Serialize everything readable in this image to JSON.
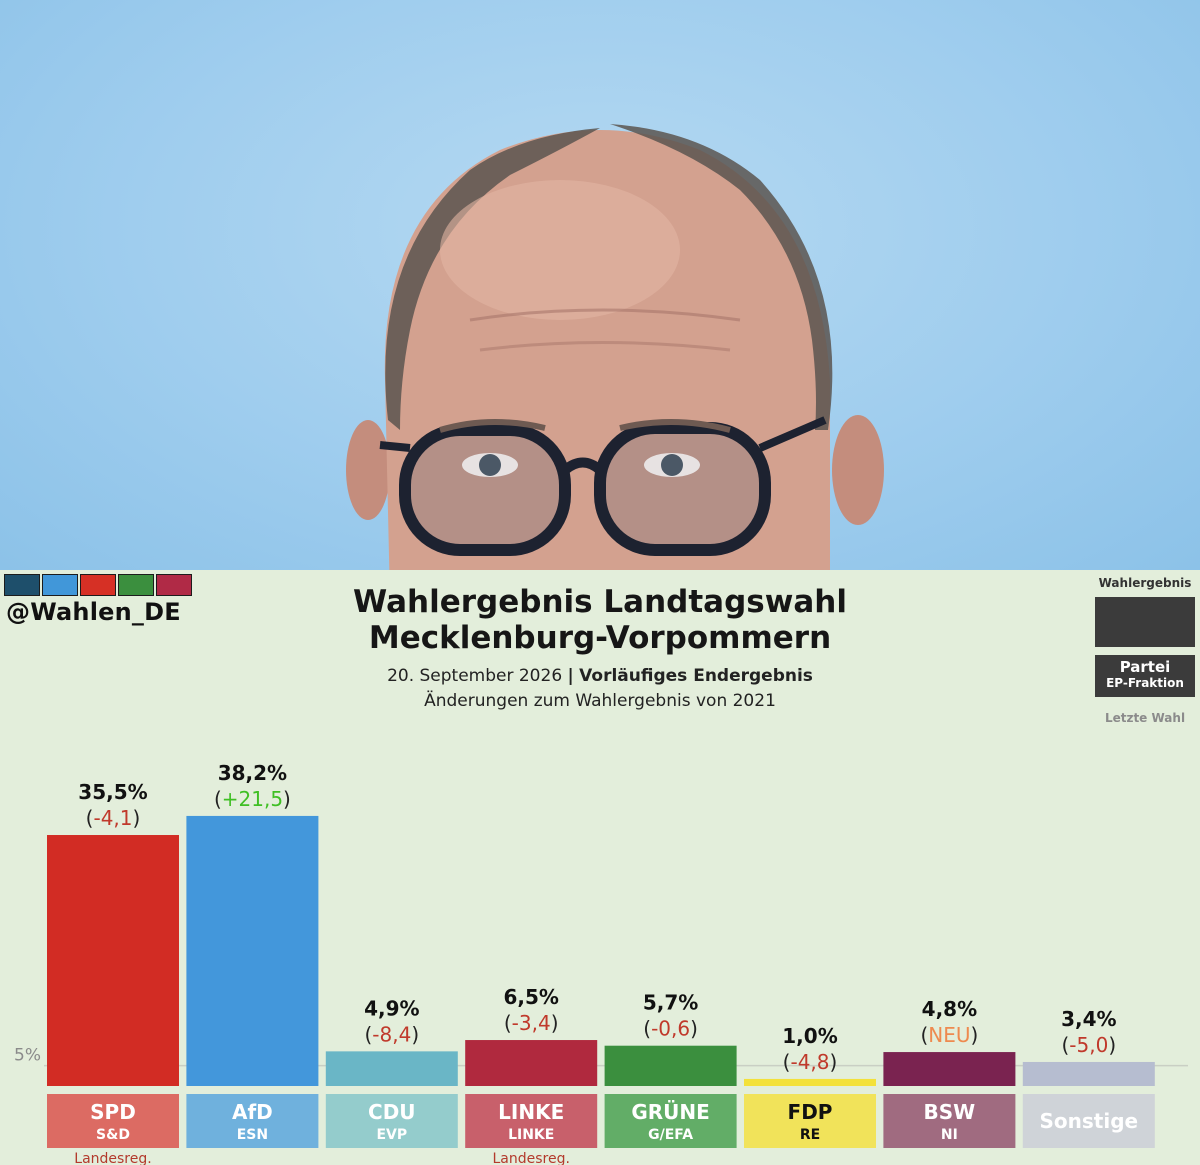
{
  "header": {
    "handle": "@Wahlen_DE",
    "brand_colors": [
      "#1e4f6b",
      "#4197d9",
      "#d63025",
      "#3b8f3e",
      "#b02a46"
    ]
  },
  "title_line1": "Wahlergebnis Landtagswahl",
  "title_line2": "Mecklenburg-Vorpommern",
  "subtitle_date": "20. September 2026",
  "subtitle_sep": "|",
  "subtitle_status": "Vorläufiges Endergebnis",
  "subtitle_changes": "Änderungen zum Wahlergebnis von 2021",
  "legend": {
    "result": "Wahlergebnis",
    "party": "Partei",
    "faction": "EP-Fraktion",
    "last": "Letzte Wahl"
  },
  "chart_data": {
    "type": "bar",
    "threshold_label": "5%",
    "threshold_value": 5,
    "bars": [
      {
        "party": "SPD",
        "faction": "S&D",
        "value": 35.5,
        "value_label": "35,5%",
        "change": "-4,1",
        "change_color": "#c0392b",
        "color": "#d22c24",
        "label_bg": "#dc6b63",
        "label_color": "#ffffff",
        "note": "Landesreg."
      },
      {
        "party": "AfD",
        "faction": "ESN",
        "value": 38.2,
        "value_label": "38,2%",
        "change": "+21,5",
        "change_color": "#3fbf24",
        "color": "#4397db",
        "label_bg": "#6fb1dd",
        "label_color": "#ffffff",
        "note": ""
      },
      {
        "party": "CDU",
        "faction": "EVP",
        "value": 4.9,
        "value_label": "4,9%",
        "change": "-8,4",
        "change_color": "#c0392b",
        "color": "#6ab6c6",
        "label_bg": "#94cccc",
        "label_color": "#ffffff",
        "note": ""
      },
      {
        "party": "LINKE",
        "faction": "LINKE",
        "value": 6.5,
        "value_label": "6,5%",
        "change": "-3,4",
        "change_color": "#c0392b",
        "color": "#b0293e",
        "label_bg": "#c8606b",
        "label_color": "#ffffff",
        "note": "Landesreg."
      },
      {
        "party": "GRÜNE",
        "faction": "G/EFA",
        "value": 5.7,
        "value_label": "5,7%",
        "change": "-0,6",
        "change_color": "#c0392b",
        "color": "#3b8f3e",
        "label_bg": "#62ad67",
        "label_color": "#ffffff",
        "note": ""
      },
      {
        "party": "FDP",
        "faction": "RE",
        "value": 1.0,
        "value_label": "1,0%",
        "change": "-4,8",
        "change_color": "#c0392b",
        "color": "#f3e13a",
        "label_bg": "#f1e35a",
        "label_color": "#111111",
        "note": ""
      },
      {
        "party": "BSW",
        "faction": "NI",
        "value": 4.8,
        "value_label": "4,8%",
        "change": "NEU",
        "change_color": "#ee8a4f",
        "color": "#7a2350",
        "label_bg": "#a06b80",
        "label_color": "#ffffff",
        "note": ""
      },
      {
        "party": "Sonstige",
        "faction": "",
        "value": 3.4,
        "value_label": "3,4%",
        "change": "-5,0",
        "change_color": "#c0392b",
        "color": "#b6bdd0",
        "label_bg": "#cfd3d8",
        "label_color": "#ffffff",
        "note": ""
      }
    ]
  }
}
